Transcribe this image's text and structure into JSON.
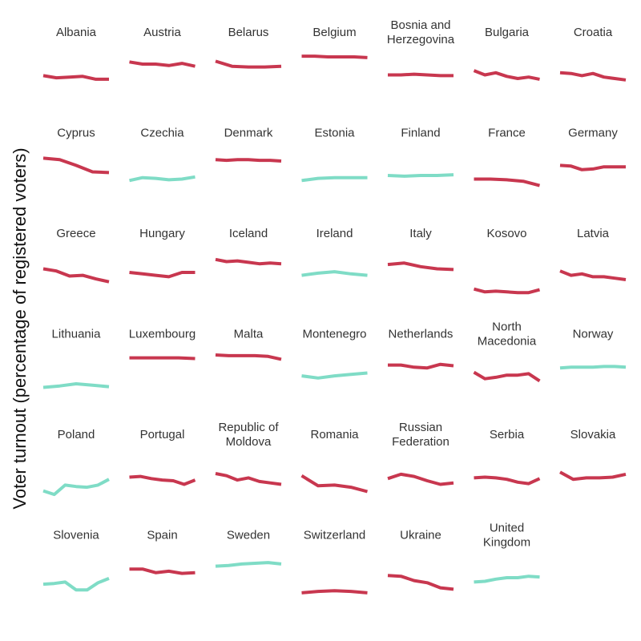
{
  "chart_data": {
    "type": "line",
    "title": "",
    "xlabel": "",
    "ylabel": "Voter turnout (percentage of registered voters)",
    "ylim": [
      30,
      100
    ],
    "grid": false,
    "legend": "none",
    "colors": {
      "declining": "#c8374f",
      "increasing": "#7fdcc6"
    },
    "panels": [
      {
        "name": "Albania",
        "trend": "declining",
        "x": [
          1,
          2,
          3,
          4,
          5,
          6
        ],
        "values": [
          64,
          61,
          62,
          63,
          59,
          59
        ]
      },
      {
        "name": "Austria",
        "trend": "declining",
        "x": [
          1,
          2,
          3,
          4,
          5,
          6
        ],
        "values": [
          83,
          80,
          80,
          78,
          81,
          77
        ]
      },
      {
        "name": "Belarus",
        "trend": "declining",
        "x": [
          1,
          2,
          3,
          4,
          5
        ],
        "values": [
          84,
          77,
          76,
          76,
          77
        ]
      },
      {
        "name": "Belgium",
        "trend": "declining",
        "x": [
          1,
          2,
          3,
          4,
          5,
          6
        ],
        "values": [
          91,
          91,
          90,
          90,
          90,
          89
        ]
      },
      {
        "name": "Bosnia and\nHerzegovina",
        "trend": "declining",
        "x": [
          1,
          2,
          3,
          4,
          5,
          6
        ],
        "values": [
          65,
          65,
          66,
          65,
          64,
          64
        ]
      },
      {
        "name": "Bulgaria",
        "trend": "declining",
        "x": [
          1,
          2,
          3,
          4,
          5,
          6,
          7
        ],
        "values": [
          71,
          65,
          68,
          63,
          60,
          62,
          59
        ]
      },
      {
        "name": "Croatia",
        "trend": "declining",
        "x": [
          1,
          2,
          3,
          4,
          5,
          6,
          7
        ],
        "values": [
          68,
          67,
          64,
          67,
          62,
          60,
          58
        ]
      },
      {
        "name": "Cyprus",
        "trend": "declining",
        "x": [
          1,
          2,
          3,
          4,
          5
        ],
        "values": [
          89,
          87,
          79,
          70,
          69
        ]
      },
      {
        "name": "Czechia",
        "trend": "increasing",
        "x": [
          1,
          2,
          3,
          4,
          5,
          6
        ],
        "values": [
          58,
          62,
          61,
          59,
          60,
          63
        ]
      },
      {
        "name": "Denmark",
        "trend": "declining",
        "x": [
          1,
          2,
          3,
          4,
          5,
          6,
          7
        ],
        "values": [
          87,
          86,
          87,
          87,
          86,
          86,
          85
        ]
      },
      {
        "name": "Estonia",
        "trend": "increasing",
        "x": [
          1,
          2,
          3,
          4,
          5
        ],
        "values": [
          58,
          61,
          62,
          62,
          62
        ]
      },
      {
        "name": "Finland",
        "trend": "increasing",
        "x": [
          1,
          2,
          3,
          4,
          5
        ],
        "values": [
          65,
          64,
          65,
          65,
          66
        ]
      },
      {
        "name": "France",
        "trend": "declining",
        "x": [
          1,
          2,
          3,
          4,
          5
        ],
        "values": [
          60,
          60,
          59,
          57,
          51
        ]
      },
      {
        "name": "Germany",
        "trend": "declining",
        "x": [
          1,
          2,
          3,
          4,
          5,
          6,
          7
        ],
        "values": [
          79,
          78,
          73,
          74,
          77,
          77,
          77
        ]
      },
      {
        "name": "Greece",
        "trend": "declining",
        "x": [
          1,
          2,
          3,
          4,
          5,
          6
        ],
        "values": [
          75,
          72,
          65,
          66,
          61,
          57
        ]
      },
      {
        "name": "Hungary",
        "trend": "declining",
        "x": [
          1,
          2,
          3,
          4,
          5,
          6
        ],
        "values": [
          70,
          68,
          66,
          64,
          70,
          70
        ]
      },
      {
        "name": "Iceland",
        "trend": "declining",
        "x": [
          1,
          2,
          3,
          4,
          5,
          6,
          7
        ],
        "values": [
          88,
          85,
          86,
          84,
          82,
          83,
          82
        ]
      },
      {
        "name": "Ireland",
        "trend": "increasing",
        "x": [
          1,
          2,
          3,
          4,
          5
        ],
        "values": [
          66,
          69,
          71,
          68,
          66
        ]
      },
      {
        "name": "Italy",
        "trend": "declining",
        "x": [
          1,
          2,
          3,
          4,
          5
        ],
        "values": [
          81,
          83,
          78,
          75,
          74
        ]
      },
      {
        "name": "Kosovo",
        "trend": "declining",
        "x": [
          1,
          2,
          3,
          4,
          5,
          6,
          7
        ],
        "values": [
          47,
          43,
          44,
          43,
          42,
          42,
          46
        ]
      },
      {
        "name": "Latvia",
        "trend": "declining",
        "x": [
          1,
          2,
          3,
          4,
          5,
          6,
          7
        ],
        "values": [
          72,
          66,
          68,
          64,
          64,
          62,
          60
        ]
      },
      {
        "name": "Lithuania",
        "trend": "increasing",
        "x": [
          1,
          2,
          3,
          4,
          5
        ],
        "values": [
          50,
          52,
          55,
          53,
          51
        ]
      },
      {
        "name": "Luxembourg",
        "trend": "declining",
        "x": [
          1,
          2,
          3,
          4,
          5
        ],
        "values": [
          91,
          91,
          91,
          91,
          90
        ]
      },
      {
        "name": "Malta",
        "trend": "declining",
        "x": [
          1,
          2,
          3,
          4,
          5,
          6
        ],
        "values": [
          95,
          94,
          94,
          94,
          93,
          89
        ]
      },
      {
        "name": "Montenegro",
        "trend": "increasing",
        "x": [
          1,
          2,
          3,
          4,
          5
        ],
        "values": [
          66,
          63,
          66,
          68,
          70
        ]
      },
      {
        "name": "Netherlands",
        "trend": "declining",
        "x": [
          1,
          2,
          3,
          4,
          5,
          6
        ],
        "values": [
          81,
          81,
          78,
          77,
          82,
          80
        ]
      },
      {
        "name": "North\nMacedonia",
        "trend": "declining",
        "x": [
          1,
          2,
          3,
          4,
          5,
          6,
          7
        ],
        "values": [
          71,
          62,
          64,
          67,
          67,
          69,
          59
        ]
      },
      {
        "name": "Norway",
        "trend": "increasing",
        "x": [
          1,
          2,
          3,
          4,
          5,
          6,
          7
        ],
        "values": [
          77,
          78,
          78,
          78,
          79,
          79,
          78
        ]
      },
      {
        "name": "Poland",
        "trend": "increasing",
        "x": [
          1,
          2,
          3,
          4,
          5,
          6,
          7
        ],
        "values": [
          46,
          41,
          54,
          52,
          51,
          54,
          62
        ]
      },
      {
        "name": "Portugal",
        "trend": "declining",
        "x": [
          1,
          2,
          3,
          4,
          5,
          6,
          7
        ],
        "values": [
          65,
          66,
          63,
          61,
          60,
          55,
          61
        ]
      },
      {
        "name": "Republic of\nMoldova",
        "trend": "declining",
        "x": [
          1,
          2,
          3,
          4,
          5,
          6,
          7
        ],
        "values": [
          70,
          67,
          61,
          64,
          59,
          57,
          55
        ]
      },
      {
        "name": "Romania",
        "trend": "declining",
        "x": [
          1,
          2,
          3,
          4,
          5
        ],
        "values": [
          67,
          53,
          54,
          51,
          45
        ]
      },
      {
        "name": "Russian\nFederation",
        "trend": "declining",
        "x": [
          1,
          2,
          3,
          4,
          5,
          6
        ],
        "values": [
          63,
          69,
          66,
          60,
          55,
          57
        ]
      },
      {
        "name": "Serbia",
        "trend": "declining",
        "x": [
          1,
          2,
          3,
          4,
          5,
          6,
          7
        ],
        "values": [
          64,
          65,
          64,
          62,
          58,
          56,
          63
        ]
      },
      {
        "name": "Slovakia",
        "trend": "declining",
        "x": [
          1,
          2,
          3,
          4,
          5,
          6
        ],
        "values": [
          72,
          62,
          64,
          64,
          65,
          69
        ]
      },
      {
        "name": "Slovenia",
        "trend": "increasing",
        "x": [
          1,
          2,
          3,
          4,
          5,
          6,
          7
        ],
        "values": [
          56,
          57,
          59,
          48,
          48,
          58,
          64
        ]
      },
      {
        "name": "Spain",
        "trend": "declining",
        "x": [
          1,
          2,
          3,
          4,
          5,
          6
        ],
        "values": [
          77,
          77,
          72,
          74,
          71,
          72
        ]
      },
      {
        "name": "Sweden",
        "trend": "increasing",
        "x": [
          1,
          2,
          3,
          4,
          5,
          6
        ],
        "values": [
          81,
          82,
          84,
          85,
          86,
          84
        ]
      },
      {
        "name": "Switzerland",
        "trend": "declining",
        "x": [
          1,
          2,
          3,
          4,
          5
        ],
        "values": [
          44,
          46,
          47,
          46,
          44
        ]
      },
      {
        "name": "Ukraine",
        "trend": "declining",
        "x": [
          1,
          2,
          3,
          4,
          5,
          6
        ],
        "values": [
          68,
          67,
          61,
          58,
          51,
          49
        ]
      },
      {
        "name": "United\nKingdom",
        "trend": "increasing",
        "x": [
          1,
          2,
          3,
          4,
          5,
          6,
          7
        ],
        "values": [
          59,
          60,
          63,
          65,
          65,
          67,
          66
        ]
      }
    ]
  }
}
